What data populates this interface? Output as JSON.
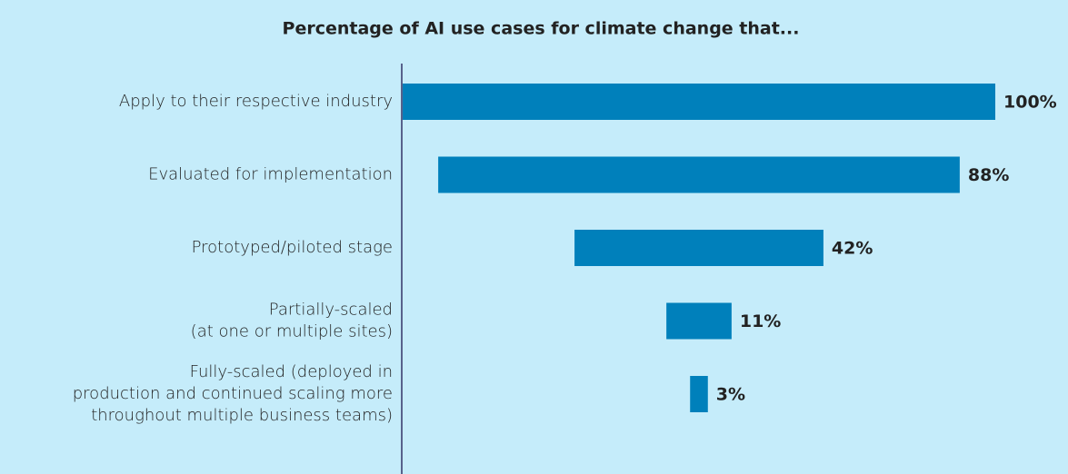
{
  "chart_data": {
    "type": "funnel",
    "title": "Percentage of AI use cases for climate change that...",
    "categories": [
      [
        "Apply to their respective industry"
      ],
      [
        "Evaluated for implementation"
      ],
      [
        "Prototyped/piloted stage"
      ],
      [
        "Partially-scaled",
        "(at one or multiple sites)"
      ],
      [
        "Fully-scaled (deployed in",
        "production and continued scaling more",
        "throughout multiple business teams)"
      ]
    ],
    "values": [
      100,
      88,
      42,
      11,
      3
    ],
    "value_labels": [
      "100%",
      "88%",
      "42%",
      "11%",
      "3%"
    ],
    "color": "#0080bb",
    "xlim": [
      0,
      100
    ]
  }
}
